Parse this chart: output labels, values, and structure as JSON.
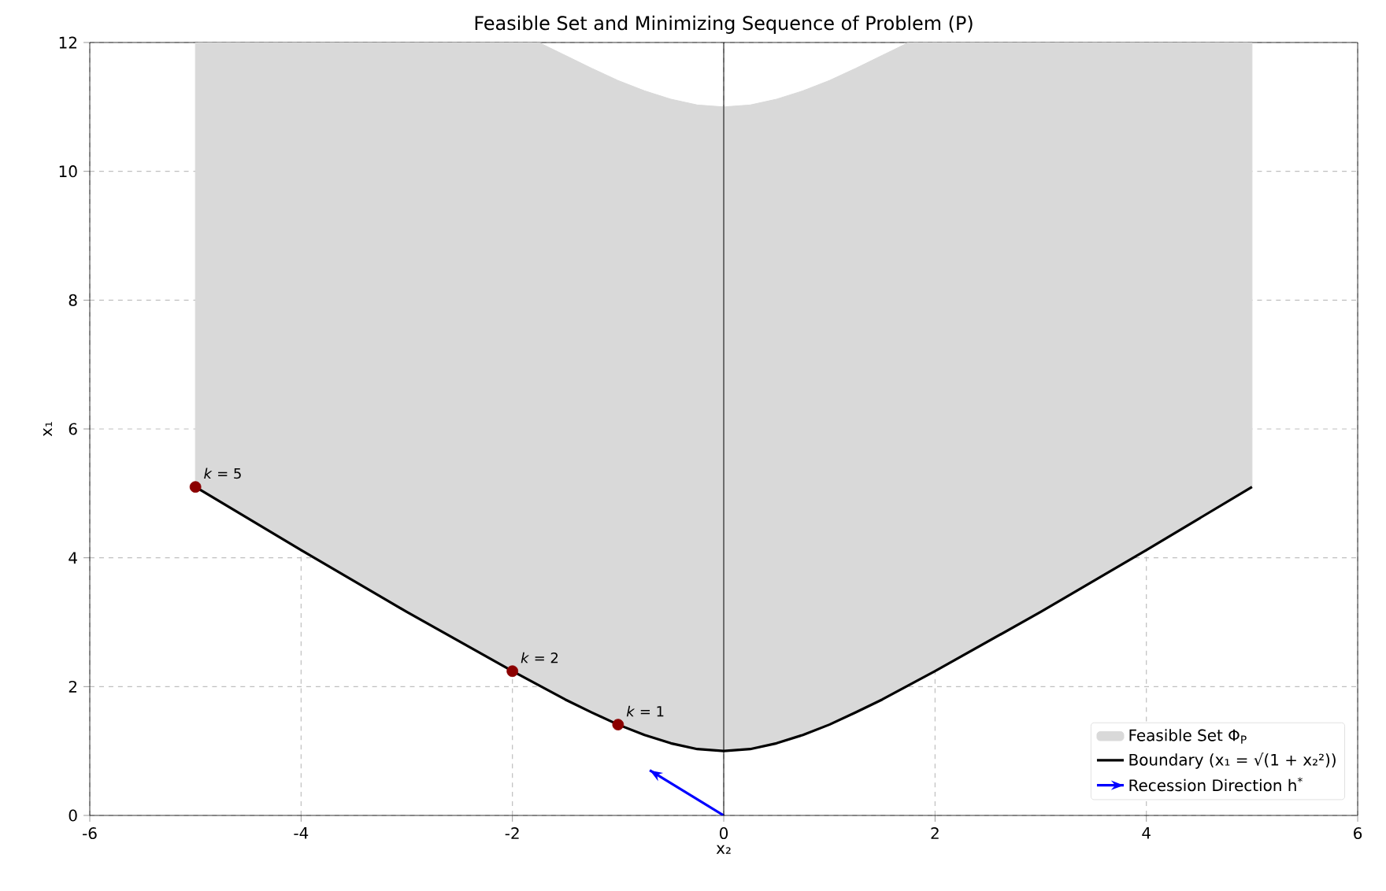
{
  "chart_data": {
    "type": "line",
    "title": "Feasible Set and Minimizing Sequence of Problem (P)",
    "xlabel": "x₂",
    "ylabel": "x₁",
    "xlim": [
      -6,
      6
    ],
    "ylim": [
      0,
      12
    ],
    "xticks": [
      -6,
      -4,
      -2,
      0,
      2,
      4,
      6
    ],
    "yticks": [
      0,
      2,
      4,
      6,
      8,
      10,
      12
    ],
    "grid": true,
    "legend": "bottom right",
    "series": [
      {
        "type": "area",
        "name": "Feasible Set Φ$_{P}$",
        "color": "#d9d9d9",
        "x": [
          -5,
          -4,
          -3,
          -2,
          -1.75,
          -1.5,
          -1.25,
          -1,
          -0.75,
          -0.5,
          -0.25,
          0,
          0.25,
          0.5,
          0.75,
          1,
          1.25,
          1.5,
          1.75,
          2,
          3,
          4,
          5
        ],
        "values": [
          12,
          12,
          12,
          12,
          12,
          11.8,
          11.6,
          11.41,
          11.25,
          11.12,
          11.03,
          11,
          11.03,
          11.12,
          11.25,
          11.41,
          11.6,
          11.8,
          12,
          12,
          12,
          12,
          12
        ]
      },
      {
        "name": "Boundary (x₁ = √(1 + x₂²))",
        "color": "#000000",
        "line_style": "solid",
        "x": [
          -5,
          -4,
          -3,
          -2,
          -1.75,
          -1.5,
          -1.25,
          -1,
          -0.75,
          -0.5,
          -0.25,
          0,
          0.25,
          0.5,
          0.75,
          1,
          1.25,
          1.5,
          1.75,
          2,
          3,
          4,
          5
        ],
        "values": [
          5.1,
          4.12,
          3.16,
          2.24,
          2.02,
          1.8,
          1.6,
          1.41,
          1.25,
          1.12,
          1.03,
          1,
          1.03,
          1.12,
          1.25,
          1.41,
          1.6,
          1.8,
          2.02,
          2.24,
          3.16,
          4.12,
          5.1
        ]
      },
      {
        "type": "scatter",
        "color": "#8b0000",
        "marker": "circle",
        "x": [
          -5,
          -2,
          -1
        ],
        "values": [
          5.1,
          2.24,
          1.41
        ]
      },
      {
        "name": "Recession Direction h$^{*}$",
        "color": "#0000ff",
        "line_style": "solid",
        "x": [
          0,
          -0.7
        ],
        "values": [
          0,
          0.7
        ]
      }
    ],
    "ref_lines": [
      {
        "axis": "x",
        "value": 0,
        "color": "#000000"
      }
    ],
    "annotations": [
      {
        "text": "*k* = 5",
        "x": -5,
        "y": 5.1
      },
      {
        "text": "*k* = 2",
        "x": -2,
        "y": 2.24
      },
      {
        "text": "*k* = 1",
        "x": -1,
        "y": 1.41
      }
    ]
  }
}
